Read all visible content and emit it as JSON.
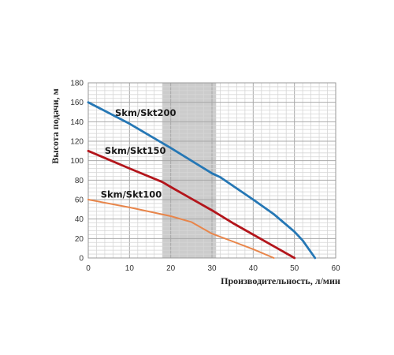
{
  "chart_data": {
    "type": "line",
    "xlabel": "Производительность, л/мин",
    "ylabel": "Высота подачи, м",
    "xlim": [
      0,
      60
    ],
    "ylim": [
      0,
      180
    ],
    "x_ticks": [
      0,
      10,
      20,
      30,
      40,
      50,
      60
    ],
    "y_ticks": [
      0,
      20,
      40,
      60,
      80,
      100,
      120,
      140,
      160,
      180
    ],
    "x_minor_step": 2,
    "y_minor_step": 4,
    "grid": true,
    "highlight_band": {
      "x_from": 18,
      "x_to": 31,
      "color": "#cccccc"
    },
    "series": [
      {
        "name": "Skm/Skt200",
        "color": "#2577b5",
        "points": [
          [
            0,
            160
          ],
          [
            10,
            138
          ],
          [
            20,
            113
          ],
          [
            30,
            87
          ],
          [
            32,
            83
          ],
          [
            40,
            60
          ],
          [
            45,
            45
          ],
          [
            50,
            27
          ],
          [
            52,
            18
          ],
          [
            55,
            0
          ]
        ]
      },
      {
        "name": "Skm/Skt150",
        "color": "#b3151b",
        "points": [
          [
            0,
            110
          ],
          [
            10,
            92
          ],
          [
            18,
            78
          ],
          [
            20,
            73
          ],
          [
            25,
            61
          ],
          [
            30,
            49
          ],
          [
            35,
            36
          ],
          [
            40,
            24
          ],
          [
            45,
            12
          ],
          [
            50,
            0
          ]
        ]
      },
      {
        "name": "Skm/Skt100",
        "color": "#e8854a",
        "points": [
          [
            0,
            60
          ],
          [
            10,
            52
          ],
          [
            20,
            43
          ],
          [
            25,
            37
          ],
          [
            30,
            25
          ],
          [
            35,
            17
          ],
          [
            40,
            9
          ],
          [
            45,
            0
          ]
        ]
      }
    ]
  }
}
